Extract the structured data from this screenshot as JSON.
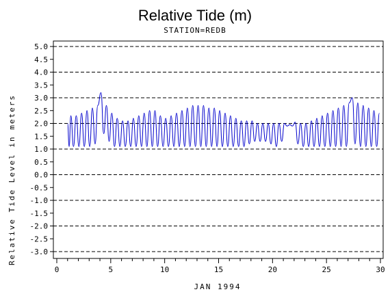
{
  "chart_data": {
    "type": "line",
    "title": "Relative Tide (m)",
    "subtitle": "STATION=REDB",
    "xlabel": "JAN 1994",
    "ylabel": "Relative Tide Level in meters",
    "xlim": [
      0,
      30
    ],
    "ylim": [
      -3.0,
      5.0
    ],
    "x_ticks": [
      "0",
      "5",
      "10",
      "15",
      "20",
      "25",
      "30"
    ],
    "y_ticks": [
      "-3.0",
      "-2.5",
      "-2.0",
      "-1.5",
      "-1.0",
      "-0.5",
      "0.0",
      "0.5",
      "1.0",
      "1.5",
      "2.0",
      "2.5",
      "3.0",
      "3.5",
      "4.0",
      "4.5",
      "5.0"
    ],
    "y_gridlines": [
      -3,
      -2,
      -1,
      0,
      1,
      2,
      3,
      4,
      5
    ],
    "grid": "horizontal dashed",
    "series": [
      {
        "color": "#0000cc",
        "peaks": [
          [
            1.0,
            2.0
          ],
          [
            1.3,
            2.3
          ],
          [
            1.8,
            2.3
          ],
          [
            2.3,
            2.4
          ],
          [
            2.8,
            2.5
          ],
          [
            3.3,
            2.6
          ],
          [
            3.8,
            2.7
          ],
          [
            4.1,
            3.2
          ],
          [
            4.6,
            2.7
          ],
          [
            5.1,
            2.4
          ],
          [
            5.6,
            2.2
          ],
          [
            6.1,
            2.1
          ],
          [
            6.6,
            2.1
          ],
          [
            7.1,
            2.2
          ],
          [
            7.6,
            2.3
          ],
          [
            8.1,
            2.4
          ],
          [
            8.6,
            2.5
          ],
          [
            9.1,
            2.5
          ],
          [
            9.6,
            2.3
          ],
          [
            10.1,
            2.2
          ],
          [
            10.6,
            2.3
          ],
          [
            11.1,
            2.4
          ],
          [
            11.6,
            2.5
          ],
          [
            12.1,
            2.6
          ],
          [
            12.6,
            2.7
          ],
          [
            13.1,
            2.7
          ],
          [
            13.6,
            2.7
          ],
          [
            14.1,
            2.6
          ],
          [
            14.6,
            2.6
          ],
          [
            15.1,
            2.5
          ],
          [
            15.6,
            2.4
          ],
          [
            16.1,
            2.3
          ],
          [
            16.6,
            2.2
          ],
          [
            17.1,
            2.1
          ],
          [
            17.6,
            2.1
          ],
          [
            18.1,
            2.1
          ],
          [
            18.6,
            2.0
          ],
          [
            19.1,
            2.0
          ],
          [
            19.6,
            2.0
          ],
          [
            20.1,
            2.0
          ],
          [
            20.6,
            2.0
          ],
          [
            21.1,
            2.0
          ],
          [
            21.6,
            1.95
          ],
          [
            22.1,
            2.05
          ],
          [
            22.6,
            2.0
          ],
          [
            23.1,
            2.0
          ],
          [
            23.6,
            2.1
          ],
          [
            24.1,
            2.2
          ],
          [
            24.6,
            2.3
          ],
          [
            25.1,
            2.4
          ],
          [
            25.6,
            2.5
          ],
          [
            26.1,
            2.6
          ],
          [
            26.6,
            2.7
          ],
          [
            27.1,
            2.8
          ],
          [
            27.4,
            3.0
          ],
          [
            27.9,
            2.8
          ],
          [
            28.4,
            2.7
          ],
          [
            28.9,
            2.6
          ],
          [
            29.4,
            2.5
          ],
          [
            29.9,
            2.4
          ]
        ],
        "troughs": [
          [
            1.15,
            1.1
          ],
          [
            1.55,
            1.1
          ],
          [
            2.05,
            1.1
          ],
          [
            2.55,
            1.1
          ],
          [
            3.05,
            1.1
          ],
          [
            3.55,
            1.2
          ],
          [
            4.35,
            1.6
          ],
          [
            4.85,
            1.3
          ],
          [
            5.35,
            1.1
          ],
          [
            5.85,
            1.1
          ],
          [
            6.35,
            1.1
          ],
          [
            6.85,
            1.1
          ],
          [
            7.35,
            1.1
          ],
          [
            7.85,
            1.1
          ],
          [
            8.35,
            1.1
          ],
          [
            8.85,
            1.1
          ],
          [
            9.35,
            1.1
          ],
          [
            9.85,
            1.1
          ],
          [
            10.35,
            1.1
          ],
          [
            10.85,
            1.1
          ],
          [
            11.35,
            1.1
          ],
          [
            11.85,
            1.1
          ],
          [
            12.35,
            1.1
          ],
          [
            12.85,
            1.1
          ],
          [
            13.35,
            1.1
          ],
          [
            13.85,
            1.1
          ],
          [
            14.35,
            1.1
          ],
          [
            14.85,
            1.1
          ],
          [
            15.35,
            1.1
          ],
          [
            15.85,
            1.1
          ],
          [
            16.35,
            1.1
          ],
          [
            16.85,
            1.1
          ],
          [
            17.35,
            1.1
          ],
          [
            17.85,
            1.2
          ],
          [
            18.35,
            1.3
          ],
          [
            18.85,
            1.3
          ],
          [
            19.35,
            1.3
          ],
          [
            19.85,
            1.2
          ],
          [
            20.35,
            1.1
          ],
          [
            20.85,
            1.3
          ],
          [
            21.35,
            1.9
          ],
          [
            21.85,
            1.9
          ],
          [
            22.35,
            1.2
          ],
          [
            22.85,
            1.1
          ],
          [
            23.35,
            1.1
          ],
          [
            23.85,
            1.1
          ],
          [
            24.35,
            1.1
          ],
          [
            24.85,
            1.1
          ],
          [
            25.35,
            1.1
          ],
          [
            25.85,
            1.1
          ],
          [
            26.35,
            1.1
          ],
          [
            26.85,
            1.1
          ],
          [
            27.65,
            1.2
          ],
          [
            28.15,
            1.1
          ],
          [
            28.65,
            1.1
          ],
          [
            29.15,
            1.1
          ],
          [
            29.65,
            1.1
          ]
        ]
      }
    ]
  }
}
